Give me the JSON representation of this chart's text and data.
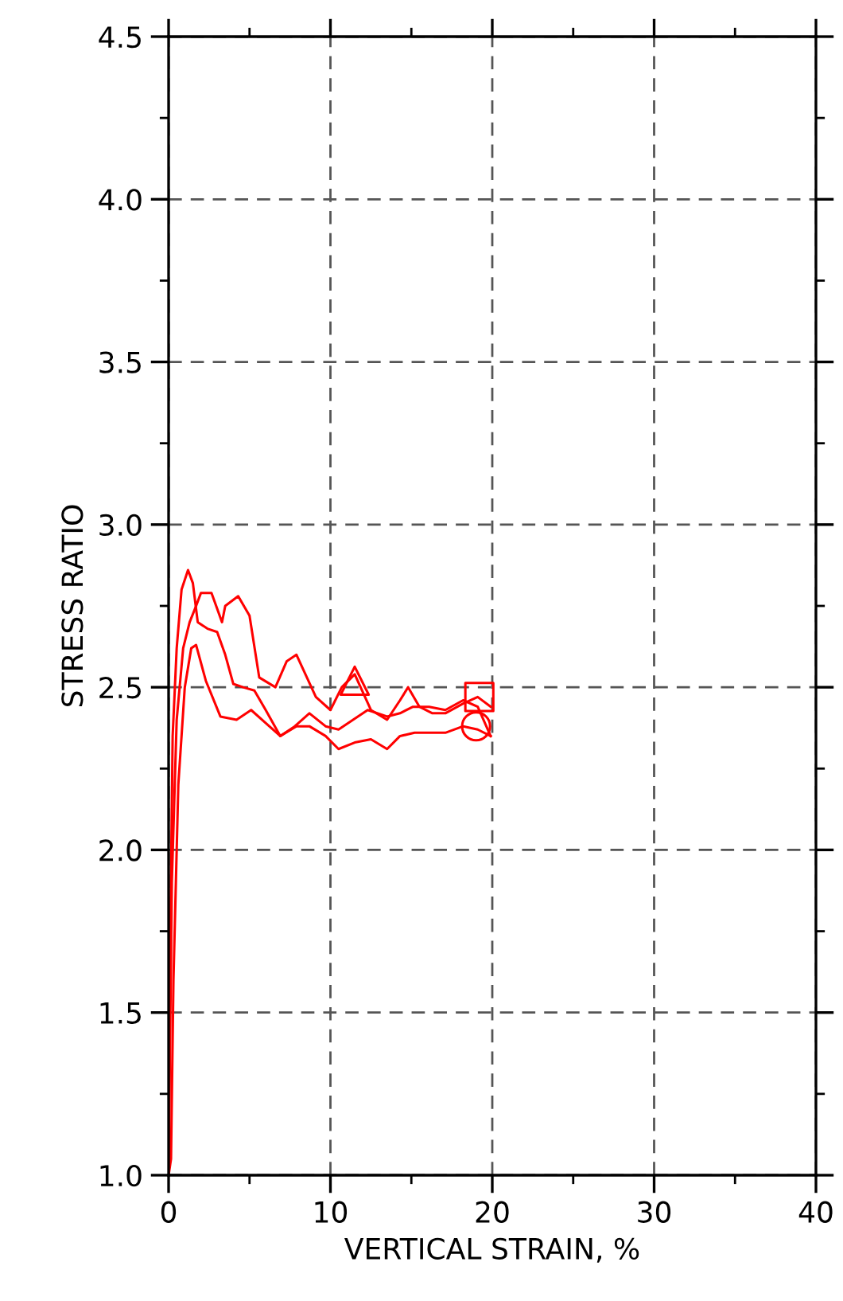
{
  "chart_data": {
    "type": "line",
    "xlabel": "VERTICAL STRAIN, %",
    "ylabel": "STRESS RATIO",
    "xlim": [
      0,
      40
    ],
    "ylim": [
      1.0,
      4.5
    ],
    "xticks": [
      0,
      10,
      20,
      30,
      40
    ],
    "yticks": [
      {
        "value": 1.0,
        "label": "1.0"
      },
      {
        "value": 1.5,
        "label": "1.5"
      },
      {
        "value": 2.0,
        "label": "2.0"
      },
      {
        "value": 2.5,
        "label": "2.5"
      },
      {
        "value": 3.0,
        "label": "3.0"
      },
      {
        "value": 3.5,
        "label": "3.5"
      },
      {
        "value": 4.0,
        "label": "4.0"
      },
      {
        "value": 4.5,
        "label": "4.5"
      }
    ],
    "grid": true,
    "series": [
      {
        "color": "#ff0000",
        "x": [
          0,
          0.1,
          0.25,
          0.5,
          0.8,
          1.2,
          1.5,
          1.8,
          2.4,
          3.0,
          3.5,
          4.0,
          4.6,
          5.3,
          6.0,
          6.9,
          7.8,
          8.7,
          9.7,
          10.5,
          11.4,
          12.3,
          13.5,
          14.3,
          15.1,
          16.1,
          17.1,
          18.2,
          19.1,
          19.9
        ],
        "values": [
          1.0,
          1.7,
          2.35,
          2.62,
          2.8,
          2.86,
          2.82,
          2.7,
          2.68,
          2.67,
          2.6,
          2.51,
          2.5,
          2.49,
          2.43,
          2.35,
          2.38,
          2.42,
          2.38,
          2.37,
          2.4,
          2.43,
          2.41,
          2.42,
          2.44,
          2.44,
          2.43,
          2.46,
          2.44,
          2.35
        ]
      },
      {
        "color": "#ff0000",
        "x": [
          0,
          0.2,
          0.5,
          0.9,
          1.3,
          1.7,
          2.0,
          2.65,
          3.3,
          3.5,
          4.3,
          5.0,
          5.6,
          6.6,
          7.3,
          7.9,
          9.1,
          10.0,
          10.7,
          11.5,
          12.5,
          13.5,
          14.3,
          14.8,
          15.5,
          16.3,
          17.1,
          18.2,
          19.1,
          19.9
        ],
        "values": [
          1.0,
          1.9,
          2.4,
          2.62,
          2.7,
          2.75,
          2.79,
          2.79,
          2.7,
          2.75,
          2.78,
          2.72,
          2.53,
          2.5,
          2.58,
          2.6,
          2.47,
          2.43,
          2.5,
          2.54,
          2.43,
          2.4,
          2.46,
          2.5,
          2.44,
          2.42,
          2.42,
          2.45,
          2.47,
          2.44
        ]
      },
      {
        "color": "#ff0000",
        "x": [
          0,
          0.15,
          0.3,
          0.6,
          1.0,
          1.4,
          1.7,
          2.3,
          3.2,
          4.2,
          5.1,
          6.0,
          6.9,
          7.9,
          8.7,
          9.7,
          10.5,
          11.5,
          12.5,
          13.5,
          14.3,
          15.2,
          16.1,
          17.1,
          18.2,
          19.1,
          19.9
        ],
        "values": [
          1.0,
          1.05,
          1.6,
          2.2,
          2.5,
          2.62,
          2.63,
          2.52,
          2.41,
          2.4,
          2.43,
          2.39,
          2.35,
          2.38,
          2.38,
          2.35,
          2.31,
          2.33,
          2.34,
          2.31,
          2.35,
          2.36,
          2.36,
          2.36,
          2.38,
          2.37,
          2.35
        ]
      },
      {
        "type": "scatter",
        "marker": "triangle",
        "color": "#ff0000",
        "x": [
          11.5
        ],
        "values": [
          2.52
        ]
      },
      {
        "type": "scatter",
        "marker": "square",
        "color": "#ff0000",
        "x": [
          19.2
        ],
        "values": [
          2.47
        ]
      },
      {
        "type": "scatter",
        "marker": "circle",
        "color": "#ff0000",
        "x": [
          19.0
        ],
        "values": [
          2.38
        ]
      }
    ]
  }
}
